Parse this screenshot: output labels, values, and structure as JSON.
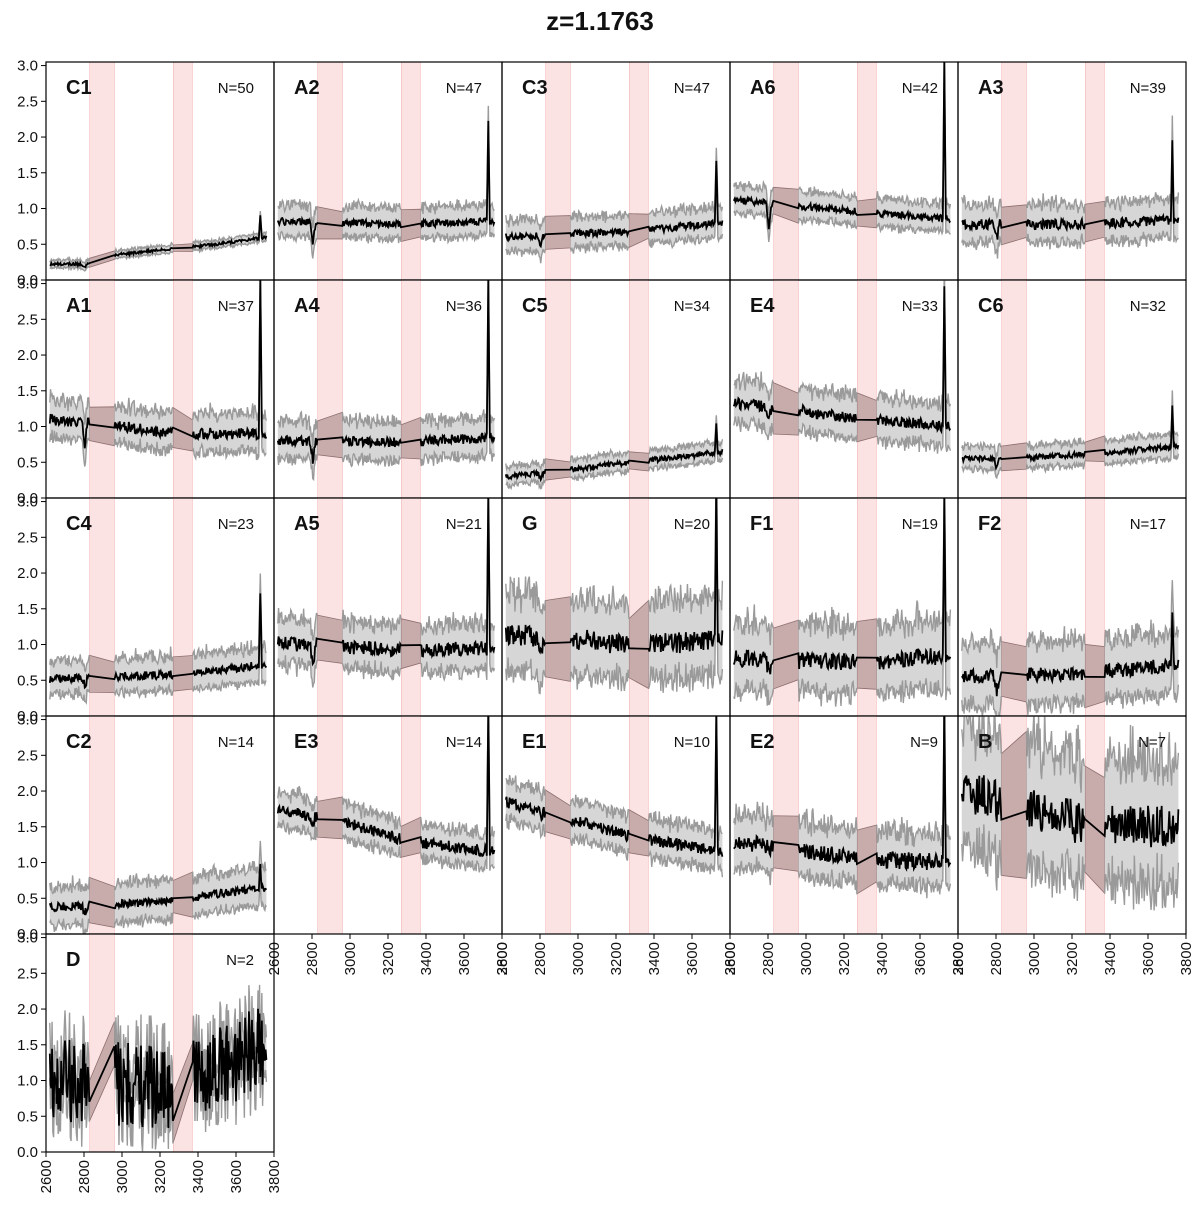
{
  "figure": {
    "title": "z=1.1763",
    "colors": {
      "median_line": "#000000",
      "spread_line": "#9a9a9a",
      "spread_fill": "#d6d6d6",
      "gap_fill": "#b79a9a",
      "masked_band": "#fbe3e3"
    }
  },
  "chart_data": {
    "type": "line",
    "shared_axes": {
      "x_ticks": [
        2600,
        2800,
        3000,
        3200,
        3400,
        3600,
        3800
      ],
      "xlim": [
        2600,
        3800
      ],
      "y_ticks": [
        0.0,
        0.5,
        1.0,
        1.5,
        2.0,
        2.5,
        3.0
      ],
      "ylim": [
        0,
        3.05
      ],
      "grid": false,
      "masked_bands": [
        [
          2830,
          2960
        ],
        [
          3270,
          3370
        ]
      ]
    },
    "panels": [
      {
        "label": "C1",
        "n": "N=50",
        "trend": [
          [
            2620,
            0.22
          ],
          [
            2800,
            0.22
          ],
          [
            2900,
            0.33
          ],
          [
            3300,
            0.45
          ],
          [
            3500,
            0.5
          ],
          [
            3760,
            0.6
          ]
        ],
        "noise": 0.02,
        "spread": 0.05,
        "dip": 0.06,
        "spike": 0.3
      },
      {
        "label": "A2",
        "n": "N=47",
        "trend": [
          [
            2620,
            0.82
          ],
          [
            3000,
            0.8
          ],
          [
            3300,
            0.78
          ],
          [
            3760,
            0.82
          ]
        ],
        "noise": 0.05,
        "spread": 0.2,
        "dip": 0.3,
        "spike": 1.4
      },
      {
        "label": "C3",
        "n": "N=47",
        "trend": [
          [
            2620,
            0.6
          ],
          [
            3000,
            0.65
          ],
          [
            3300,
            0.68
          ],
          [
            3760,
            0.8
          ]
        ],
        "noise": 0.05,
        "spread": 0.2,
        "dip": 0.15,
        "spike": 0.9
      },
      {
        "label": "A6",
        "n": "N=42",
        "trend": [
          [
            2620,
            1.12
          ],
          [
            2900,
            1.05
          ],
          [
            3300,
            0.95
          ],
          [
            3760,
            0.85
          ]
        ],
        "noise": 0.05,
        "spread": 0.18,
        "dip": 0.4,
        "spike": 2.2
      },
      {
        "label": "A3",
        "n": "N=39",
        "trend": [
          [
            2620,
            0.78
          ],
          [
            3300,
            0.78
          ],
          [
            3760,
            0.85
          ]
        ],
        "noise": 0.07,
        "spread": 0.25,
        "dip": 0.2,
        "spike": 1.1
      },
      {
        "label": "A1",
        "n": "N=37",
        "trend": [
          [
            2620,
            1.1
          ],
          [
            3000,
            1.0
          ],
          [
            3300,
            0.9
          ],
          [
            3760,
            0.9
          ]
        ],
        "noise": 0.08,
        "spread": 0.25,
        "dip": 0.3,
        "spike": 2.2
      },
      {
        "label": "A4",
        "n": "N=36",
        "trend": [
          [
            2620,
            0.8
          ],
          [
            3300,
            0.78
          ],
          [
            3760,
            0.85
          ]
        ],
        "noise": 0.07,
        "spread": 0.25,
        "dip": 0.3,
        "spike": 2.2
      },
      {
        "label": "C5",
        "n": "N=34",
        "trend": [
          [
            2620,
            0.3
          ],
          [
            2900,
            0.38
          ],
          [
            3300,
            0.5
          ],
          [
            3760,
            0.65
          ]
        ],
        "noise": 0.04,
        "spread": 0.12,
        "dip": 0.1,
        "spike": 0.4
      },
      {
        "label": "E4",
        "n": "N=33",
        "trend": [
          [
            2620,
            1.32
          ],
          [
            2900,
            1.25
          ],
          [
            3300,
            1.1
          ],
          [
            3760,
            1.0
          ]
        ],
        "noise": 0.08,
        "spread": 0.28,
        "dip": 0.2,
        "spike": 2.0
      },
      {
        "label": "C6",
        "n": "N=32",
        "trend": [
          [
            2620,
            0.55
          ],
          [
            2900,
            0.55
          ],
          [
            3300,
            0.62
          ],
          [
            3760,
            0.72
          ]
        ],
        "noise": 0.04,
        "spread": 0.15,
        "dip": 0.15,
        "spike": 0.55
      },
      {
        "label": "C4",
        "n": "N=23",
        "trend": [
          [
            2620,
            0.52
          ],
          [
            3300,
            0.58
          ],
          [
            3760,
            0.72
          ]
        ],
        "noise": 0.06,
        "spread": 0.22,
        "dip": 0.1,
        "spike": 1.0
      },
      {
        "label": "A5",
        "n": "N=21",
        "trend": [
          [
            2620,
            1.02
          ],
          [
            3300,
            0.92
          ],
          [
            3760,
            0.95
          ]
        ],
        "noise": 0.1,
        "spread": 0.3,
        "dip": 0.25,
        "spike": 2.2
      },
      {
        "label": "G",
        "n": "N=20",
        "trend": [
          [
            2620,
            1.15
          ],
          [
            3300,
            1.0
          ],
          [
            3760,
            1.05
          ]
        ],
        "noise": 0.15,
        "spread": 0.5,
        "dip": 0.2,
        "spike": 2.2
      },
      {
        "label": "F1",
        "n": "N=19",
        "trend": [
          [
            2620,
            0.8
          ],
          [
            3300,
            0.75
          ],
          [
            3760,
            0.85
          ]
        ],
        "noise": 0.12,
        "spread": 0.45,
        "dip": 0.2,
        "spike": 2.2
      },
      {
        "label": "F2",
        "n": "N=17",
        "trend": [
          [
            2620,
            0.55
          ],
          [
            3300,
            0.6
          ],
          [
            3760,
            0.72
          ]
        ],
        "noise": 0.1,
        "spread": 0.4,
        "dip": 0.2,
        "spike": 0.8
      },
      {
        "label": "C2",
        "n": "N=14",
        "trend": [
          [
            2620,
            0.38
          ],
          [
            2900,
            0.4
          ],
          [
            3300,
            0.48
          ],
          [
            3760,
            0.65
          ]
        ],
        "noise": 0.06,
        "spread": 0.25,
        "dip": 0.1,
        "spike": 0.3
      },
      {
        "label": "E3",
        "n": "N=14",
        "trend": [
          [
            2620,
            1.72
          ],
          [
            2900,
            1.62
          ],
          [
            3300,
            1.3
          ],
          [
            3760,
            1.15
          ]
        ],
        "noise": 0.08,
        "spread": 0.22,
        "dip": 0.1,
        "spike": 2.0
      },
      {
        "label": "E1",
        "n": "N=10",
        "trend": [
          [
            2620,
            1.85
          ],
          [
            2900,
            1.65
          ],
          [
            3300,
            1.35
          ],
          [
            3760,
            1.15
          ]
        ],
        "noise": 0.08,
        "spread": 0.25,
        "dip": 0.1,
        "spike": 2.0
      },
      {
        "label": "E2",
        "n": "N=9",
        "trend": [
          [
            2620,
            1.3
          ],
          [
            3300,
            1.05
          ],
          [
            3760,
            1.0
          ]
        ],
        "noise": 0.12,
        "spread": 0.35,
        "dip": 0.1,
        "spike": 2.2
      },
      {
        "label": "B",
        "n": "N=7",
        "trend": [
          [
            2620,
            2.0
          ],
          [
            2900,
            1.85
          ],
          [
            3300,
            1.5
          ],
          [
            3760,
            1.5
          ]
        ],
        "noise": 0.3,
        "spread": 0.8,
        "dip": 0.1,
        "spike": 0.0
      },
      {
        "label": "D",
        "n": "N=2",
        "trend": [
          [
            2620,
            1.0
          ],
          [
            3300,
            0.9
          ],
          [
            3760,
            1.5
          ]
        ],
        "noise": 0.6,
        "spread": 0.3,
        "dip": 0.0,
        "spike": 0.0
      }
    ]
  }
}
